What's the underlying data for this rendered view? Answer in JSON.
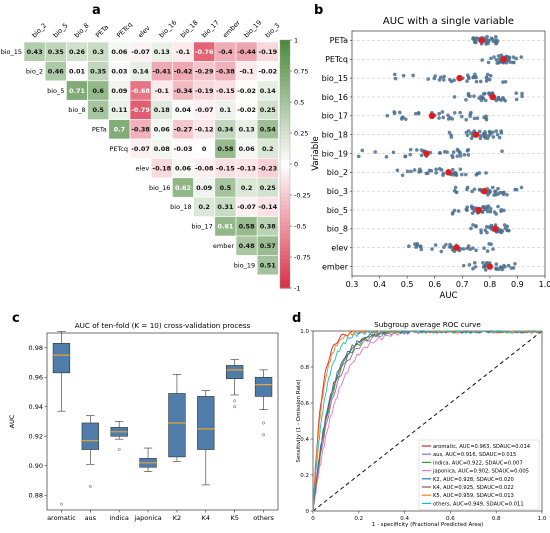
{
  "panels": {
    "a": {
      "letter": "a"
    },
    "b": {
      "letter": "b"
    },
    "c": {
      "letter": "c"
    },
    "d": {
      "letter": "d"
    }
  },
  "chart_data": [
    {
      "panel": "a",
      "type": "heatmap",
      "title": "",
      "col_labels": [
        "bio_2",
        "bio_5",
        "bio_8",
        "PETa",
        "PETcq",
        "elev",
        "bio_16",
        "bio_18",
        "bio_17",
        "ember",
        "bio_19",
        "bio_3"
      ],
      "row_labels": [
        "bio_15",
        "bio_2",
        "bio_5",
        "bio_8",
        "PETa",
        "PETcq",
        "elev",
        "bio_16",
        "bio_18",
        "bio_17",
        "ember",
        "bio_19"
      ],
      "values": [
        [
          0.43,
          0.35,
          0.26,
          0.3,
          0.06,
          -0.07,
          0.13,
          -0.1,
          -0.76,
          -0.4,
          -0.44,
          -0.19
        ],
        [
          null,
          0.46,
          0.01,
          0.35,
          0.03,
          0.14,
          -0.41,
          -0.42,
          -0.29,
          -0.38,
          -0.1,
          -0.02
        ],
        [
          null,
          null,
          0.71,
          0.6,
          0.09,
          -0.68,
          -0.1,
          -0.34,
          -0.19,
          -0.15,
          -0.02,
          0.14
        ],
        [
          null,
          null,
          null,
          0.5,
          0.11,
          -0.79,
          0.18,
          0.04,
          -0.07,
          0.1,
          -0.02,
          0.25
        ],
        [
          null,
          null,
          null,
          null,
          0.7,
          -0.38,
          0.06,
          -0.27,
          -0.12,
          0.34,
          0.13,
          0.54
        ],
        [
          null,
          null,
          null,
          null,
          null,
          -0.07,
          0.08,
          -0.03,
          0,
          0.58,
          0.06,
          0.2
        ],
        [
          null,
          null,
          null,
          null,
          null,
          null,
          -0.18,
          0.06,
          -0.08,
          -0.15,
          -0.13,
          -0.23
        ],
        [
          null,
          null,
          null,
          null,
          null,
          null,
          null,
          0.62,
          0.09,
          0.5,
          0.2,
          0.25
        ],
        [
          null,
          null,
          null,
          null,
          null,
          null,
          null,
          null,
          0.2,
          0.31,
          -0.07,
          -0.14
        ],
        [
          null,
          null,
          null,
          null,
          null,
          null,
          null,
          null,
          null,
          0.61,
          0.58,
          0.38
        ],
        [
          null,
          null,
          null,
          null,
          null,
          null,
          null,
          null,
          null,
          null,
          0.48,
          0.57
        ],
        [
          null,
          null,
          null,
          null,
          null,
          null,
          null,
          null,
          null,
          null,
          null,
          0.51
        ]
      ],
      "colorbar_ticks": [
        "1",
        "0.75",
        "0.5",
        "0.25",
        "0",
        "-0.25",
        "-0.5",
        "-0.75",
        "-1"
      ],
      "colors": {
        "positive": "#4d8a3d",
        "zero": "#ffffff",
        "negative": "#d9334a"
      }
    },
    {
      "panel": "b",
      "type": "scatter",
      "title": "AUC with a single variable",
      "xlabel": "AUC",
      "ylabel": "Variable",
      "xlim": [
        0.3,
        1.0
      ],
      "xticks": [
        "0.3",
        "0.4",
        "0.5",
        "0.6",
        "0.7",
        "0.8",
        "0.9",
        "1.0"
      ],
      "categories": [
        "PETa",
        "PETcq",
        "bio_15",
        "bio_16",
        "bio_17",
        "bio_18",
        "bio_19",
        "bio_2",
        "bio_3",
        "bio_5",
        "bio_8",
        "elev",
        "ember"
      ],
      "ranges": [
        [
          0.72,
          0.86
        ],
        [
          0.74,
          0.92
        ],
        [
          0.44,
          0.88
        ],
        [
          0.66,
          0.93
        ],
        [
          0.34,
          0.87
        ],
        [
          0.63,
          0.88
        ],
        [
          0.31,
          0.88
        ],
        [
          0.46,
          0.86
        ],
        [
          0.62,
          0.93
        ],
        [
          0.63,
          0.86
        ],
        [
          0.71,
          0.9
        ],
        [
          0.41,
          0.87
        ],
        [
          0.69,
          0.92
        ]
      ],
      "means": [
        0.77,
        0.85,
        0.69,
        0.81,
        0.59,
        0.75,
        0.57,
        0.65,
        0.78,
        0.76,
        0.82,
        0.68,
        0.8
      ],
      "colors": {
        "points": "#4a6f8f",
        "mean": "#e01c1c"
      }
    },
    {
      "panel": "c",
      "type": "box",
      "title": "AUC of ten-fold (K = 10) cross-validation process",
      "ylabel": "AUC",
      "ylim": [
        0.87,
        0.99
      ],
      "yticks": [
        "0.88",
        "0.90",
        "0.92",
        "0.94",
        "0.96",
        "0.98"
      ],
      "categories": [
        "aromatic",
        "aus",
        "indica",
        "japonica",
        "K2",
        "K4",
        "K5",
        "others"
      ],
      "boxes": [
        {
          "min": 0.937,
          "q1": 0.963,
          "median": 0.975,
          "q3": 0.983,
          "max": 0.991,
          "outliers": [
            0.874
          ]
        },
        {
          "min": 0.901,
          "q1": 0.911,
          "median": 0.917,
          "q3": 0.929,
          "max": 0.934,
          "outliers": [
            0.886
          ]
        },
        {
          "min": 0.918,
          "q1": 0.92,
          "median": 0.923,
          "q3": 0.926,
          "max": 0.93,
          "outliers": [
            0.911
          ]
        },
        {
          "min": 0.896,
          "q1": 0.899,
          "median": 0.902,
          "q3": 0.905,
          "max": 0.912,
          "outliers": []
        },
        {
          "min": 0.903,
          "q1": 0.906,
          "median": 0.929,
          "q3": 0.949,
          "max": 0.962,
          "outliers": []
        },
        {
          "min": 0.887,
          "q1": 0.911,
          "median": 0.925,
          "q3": 0.947,
          "max": 0.951,
          "outliers": []
        },
        {
          "min": 0.948,
          "q1": 0.959,
          "median": 0.965,
          "q3": 0.968,
          "max": 0.972,
          "outliers": [
            0.944,
            0.94
          ]
        },
        {
          "min": 0.938,
          "q1": 0.947,
          "median": 0.955,
          "q3": 0.96,
          "max": 0.965,
          "outliers": [
            0.929,
            0.921
          ]
        }
      ],
      "colors": {
        "box": "#4f7ca8",
        "median": "#e8a33a"
      }
    },
    {
      "panel": "d",
      "type": "line",
      "title": "Subgroup average ROC curve",
      "xlabel": "1 - specificity (Fractional Predicted Area)",
      "ylabel": "Sensitivity (1 - Omission Rate)",
      "xlim": [
        0,
        1
      ],
      "ylim": [
        0,
        1
      ],
      "xticks": [
        "0",
        "0.2",
        "0.4",
        "0.6",
        "0.8",
        "1.0"
      ],
      "yticks": [
        "0",
        "0.2",
        "0.4",
        "0.6",
        "0.8",
        "1.0"
      ],
      "series": [
        {
          "name": "aromatic, AUC=0.963, SDAUC=0.014",
          "color": "#d62728",
          "auc": 0.963
        },
        {
          "name": "aus, AUC=0.916, SDAUC=0.015",
          "color": "#9467bd",
          "auc": 0.916
        },
        {
          "name": "indica, AUC=0.922, SDAUC=0.007",
          "color": "#2ca02c",
          "auc": 0.922
        },
        {
          "name": "japonica, AUC=0.902, SDAUC=0.005",
          "color": "#e377c2",
          "auc": 0.902
        },
        {
          "name": "K2, AUC=0.928, SDAUC=0.020",
          "color": "#1f77b4",
          "auc": 0.928
        },
        {
          "name": "K4, AUC=0.925, SDAUC=0.022",
          "color": "#8c564b",
          "auc": 0.925
        },
        {
          "name": "K5, AUC=0.959, SDAUC=0.013",
          "color": "#ff7f0e",
          "auc": 0.959
        },
        {
          "name": "others, AUC=0.949, SDAUC=0.011",
          "color": "#17becf",
          "auc": 0.949
        }
      ],
      "reference_line": "diagonal dashed"
    }
  ]
}
